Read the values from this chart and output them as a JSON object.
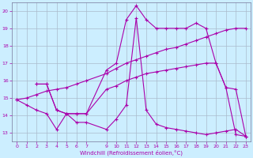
{
  "background_color": "#cceeff",
  "grid_color": "#aabbcc",
  "line_color": "#aa00aa",
  "xlabel": "Windchill (Refroidissement éolien,°C)",
  "ylim": [
    12.5,
    20.5
  ],
  "xlim": [
    -0.5,
    23.5
  ],
  "yticks": [
    13,
    14,
    15,
    16,
    17,
    18,
    19,
    20
  ],
  "xticks": [
    0,
    1,
    2,
    3,
    4,
    5,
    6,
    7,
    9,
    10,
    11,
    12,
    13,
    14,
    15,
    16,
    17,
    18,
    19,
    20,
    21,
    22,
    23
  ],
  "series1_x": [
    0,
    1,
    2,
    3,
    4,
    5,
    6,
    7,
    9,
    10,
    11,
    12,
    13,
    14,
    15,
    16,
    17,
    18,
    19,
    20,
    21,
    22,
    23
  ],
  "series1_y": [
    14.9,
    14.6,
    14.3,
    14.1,
    13.2,
    14.1,
    13.6,
    13.6,
    13.2,
    13.8,
    14.6,
    19.6,
    14.3,
    13.5,
    13.3,
    13.2,
    13.1,
    13.0,
    12.9,
    13.0,
    13.1,
    13.2,
    12.8
  ],
  "series2_x": [
    2,
    3,
    4,
    5,
    6,
    7,
    9,
    10,
    11,
    12,
    13,
    14,
    15,
    16,
    17,
    18,
    19,
    20,
    21,
    22,
    23
  ],
  "series2_y": [
    15.8,
    15.8,
    14.3,
    14.1,
    14.1,
    14.1,
    16.6,
    17.0,
    19.5,
    20.3,
    19.5,
    19.0,
    19.0,
    19.0,
    19.0,
    19.3,
    19.0,
    17.0,
    15.6,
    15.5,
    12.8
  ],
  "series3_x": [
    0,
    1,
    2,
    3,
    4,
    5,
    6,
    7,
    9,
    10,
    11,
    12,
    13,
    14,
    15,
    16,
    17,
    18,
    19,
    20,
    21,
    22,
    23
  ],
  "series3_y": [
    14.9,
    15.0,
    15.2,
    15.4,
    15.5,
    15.6,
    15.8,
    16.0,
    16.4,
    16.7,
    17.0,
    17.2,
    17.4,
    17.6,
    17.8,
    17.9,
    18.1,
    18.3,
    18.5,
    18.7,
    18.9,
    19.0,
    19.0
  ],
  "series4_x": [
    2,
    3,
    4,
    5,
    6,
    7,
    9,
    10,
    11,
    12,
    13,
    14,
    15,
    16,
    17,
    18,
    19,
    20,
    21,
    22,
    23
  ],
  "series4_y": [
    15.8,
    15.8,
    14.3,
    14.1,
    14.1,
    14.1,
    15.5,
    15.7,
    16.0,
    16.2,
    16.4,
    16.5,
    16.6,
    16.7,
    16.8,
    16.9,
    17.0,
    17.0,
    15.6,
    12.9,
    12.8
  ]
}
